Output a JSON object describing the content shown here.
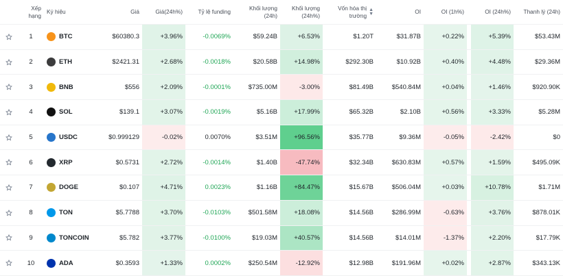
{
  "header": {
    "columns": [
      "Xếp hạng",
      "Ký hiệu",
      "Giá",
      "Giá(24h%)",
      "Tỷ lệ funding",
      "Khối lượng (24h)",
      "Khối lượng (24h%)",
      "Vốn hóa thị trường",
      "OI",
      "OI (1h%)",
      "OI (24h%)",
      "Thanh lý (24h)"
    ]
  },
  "table": {
    "rows": [
      {
        "rank": "1",
        "symbol": "BTC",
        "icon": "#f7931a",
        "price": "$60380.3",
        "price_24h": "+3.96%",
        "funding": "-0.0069%",
        "funding_color": "#20a656",
        "volume": "$59.24B",
        "volume_24h": "+6.53%",
        "market_cap": "$1.20T",
        "oi": "$31.87B",
        "oi_1h": "+0.22%",
        "oi_24h": "+5.39%",
        "liquidation": "$53.43M"
      },
      {
        "rank": "2",
        "symbol": "ETH",
        "icon": "#3c3c3d",
        "price": "$2421.31",
        "price_24h": "+2.68%",
        "funding": "-0.0018%",
        "funding_color": "#20a656",
        "volume": "$20.58B",
        "volume_24h": "+14.98%",
        "market_cap": "$292.30B",
        "oi": "$10.92B",
        "oi_1h": "+0.40%",
        "oi_24h": "+4.48%",
        "liquidation": "$29.36M"
      },
      {
        "rank": "3",
        "symbol": "BNB",
        "icon": "#f0b90b",
        "price": "$556",
        "price_24h": "+2.09%",
        "funding": "-0.0001%",
        "funding_color": "#20a656",
        "volume": "$735.00M",
        "volume_24h": "-3.00%",
        "market_cap": "$81.49B",
        "oi": "$540.84M",
        "oi_1h": "+0.04%",
        "oi_24h": "+1.46%",
        "liquidation": "$920.90K"
      },
      {
        "rank": "4",
        "symbol": "SOL",
        "icon": "#111111",
        "price": "$139.1",
        "price_24h": "+3.07%",
        "funding": "-0.0019%",
        "funding_color": "#20a656",
        "volume": "$5.16B",
        "volume_24h": "+17.99%",
        "market_cap": "$65.32B",
        "oi": "$2.10B",
        "oi_1h": "+0.56%",
        "oi_24h": "+3.33%",
        "liquidation": "$5.28M"
      },
      {
        "rank": "5",
        "symbol": "USDC",
        "icon": "#2775ca",
        "price": "$0.999129",
        "price_24h": "-0.02%",
        "funding": "0.0070%",
        "funding_color": "#1e2329",
        "volume": "$3.51M",
        "volume_24h": "+96.56%",
        "market_cap": "$35.77B",
        "oi": "$9.36M",
        "oi_1h": "-0.05%",
        "oi_24h": "-2.42%",
        "liquidation": "$0"
      },
      {
        "rank": "6",
        "symbol": "XRP",
        "icon": "#23292f",
        "price": "$0.5731",
        "price_24h": "+2.72%",
        "funding": "-0.0014%",
        "funding_color": "#20a656",
        "volume": "$1.40B",
        "volume_24h": "-47.74%",
        "market_cap": "$32.34B",
        "oi": "$630.83M",
        "oi_1h": "+0.57%",
        "oi_24h": "+1.59%",
        "liquidation": "$495.09K"
      },
      {
        "rank": "7",
        "symbol": "DOGE",
        "icon": "#c2a633",
        "price": "$0.107",
        "price_24h": "+4.71%",
        "funding": "0.0023%",
        "funding_color": "#20a656",
        "volume": "$1.16B",
        "volume_24h": "+84.47%",
        "market_cap": "$15.67B",
        "oi": "$506.04M",
        "oi_1h": "+0.03%",
        "oi_24h": "+10.78%",
        "liquidation": "$1.71M"
      },
      {
        "rank": "8",
        "symbol": "TON",
        "icon": "#0098ea",
        "price": "$5.7788",
        "price_24h": "+3.70%",
        "funding": "-0.0103%",
        "funding_color": "#20a656",
        "volume": "$501.58M",
        "volume_24h": "+18.08%",
        "market_cap": "$14.56B",
        "oi": "$286.99M",
        "oi_1h": "-0.63%",
        "oi_24h": "+3.76%",
        "liquidation": "$878.01K"
      },
      {
        "rank": "9",
        "symbol": "TONCOIN",
        "icon": "#0088cc",
        "price": "$5.782",
        "price_24h": "+3.77%",
        "funding": "-0.0100%",
        "funding_color": "#20a656",
        "volume": "$19.03M",
        "volume_24h": "+40.57%",
        "market_cap": "$14.56B",
        "oi": "$14.01M",
        "oi_1h": "-1.37%",
        "oi_24h": "+2.20%",
        "liquidation": "$17.79K"
      },
      {
        "rank": "10",
        "symbol": "ADA",
        "icon": "#0033ad",
        "price": "$0.3593",
        "price_24h": "+1.33%",
        "funding": "0.0002%",
        "funding_color": "#20a656",
        "volume": "$250.54M",
        "volume_24h": "-12.92%",
        "market_cap": "$12.98B",
        "oi": "$191.96M",
        "oi_1h": "+0.02%",
        "oi_24h": "+2.87%",
        "liquidation": "$343.13K"
      }
    ]
  }
}
